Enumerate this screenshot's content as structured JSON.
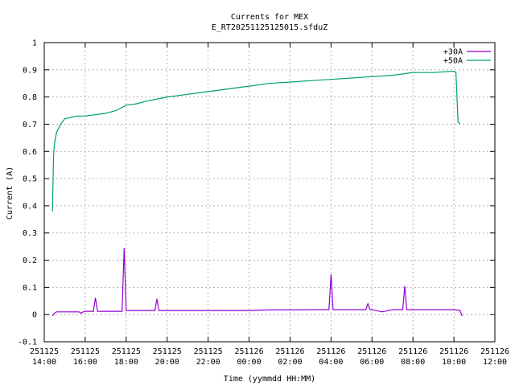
{
  "chart_data": {
    "type": "line",
    "title": "Currents for MEX",
    "subtitle": "E_RT20251125125015.sfduZ",
    "xlabel": "Time (yymmdd HH:MM)",
    "ylabel": "Current (A)",
    "xlim_hours": [
      14,
      36
    ],
    "ylim": [
      -0.1,
      1.0
    ],
    "x_ticks": [
      {
        "date": "251125",
        "time": "14:00"
      },
      {
        "date": "251125",
        "time": "16:00"
      },
      {
        "date": "251125",
        "time": "18:00"
      },
      {
        "date": "251125",
        "time": "20:00"
      },
      {
        "date": "251125",
        "time": "22:00"
      },
      {
        "date": "251126",
        "time": "00:00"
      },
      {
        "date": "251126",
        "time": "02:00"
      },
      {
        "date": "251126",
        "time": "04:00"
      },
      {
        "date": "251126",
        "time": "06:00"
      },
      {
        "date": "251126",
        "time": "08:00"
      },
      {
        "date": "251126",
        "time": "10:00"
      },
      {
        "date": "251126",
        "time": "12:00"
      }
    ],
    "y_ticks": [
      "-0.1",
      "0",
      "0.1",
      "0.2",
      "0.3",
      "0.4",
      "0.5",
      "0.6",
      "0.7",
      "0.8",
      "0.9",
      "1"
    ],
    "grid": true,
    "legend_position": "top-right",
    "series": [
      {
        "name": "+30A",
        "color": "#9400d3",
        "x_hours": [
          14.4,
          14.5,
          14.6,
          15.0,
          15.3,
          15.7,
          15.8,
          15.9,
          16.0,
          16.4,
          16.5,
          16.6,
          17.0,
          17.5,
          17.8,
          17.9,
          18.0,
          18.5,
          19.0,
          19.4,
          19.5,
          19.6,
          20.0,
          21.0,
          22.0,
          23.0,
          24.0,
          25.0,
          26.0,
          27.0,
          27.9,
          28.0,
          28.1,
          28.5,
          29.0,
          29.7,
          29.8,
          29.9,
          30.0,
          30.5,
          31.0,
          31.5,
          31.6,
          31.7,
          32.0,
          33.0,
          34.0,
          34.3,
          34.4
        ],
        "values": [
          -0.005,
          0.005,
          0.01,
          0.01,
          0.01,
          0.01,
          0.005,
          0.01,
          0.012,
          0.012,
          0.062,
          0.012,
          0.012,
          0.012,
          0.012,
          0.245,
          0.015,
          0.015,
          0.015,
          0.015,
          0.058,
          0.015,
          0.015,
          0.015,
          0.015,
          0.015,
          0.015,
          0.017,
          0.017,
          0.018,
          0.018,
          0.148,
          0.018,
          0.018,
          0.018,
          0.018,
          0.04,
          0.018,
          0.018,
          0.01,
          0.018,
          0.018,
          0.105,
          0.018,
          0.018,
          0.018,
          0.018,
          0.015,
          -0.005
        ]
      },
      {
        "name": "+50A",
        "color": "#009e73",
        "x_hours": [
          14.4,
          14.45,
          14.5,
          14.6,
          14.8,
          15.0,
          15.3,
          15.6,
          16.0,
          16.5,
          17.0,
          17.5,
          18.0,
          18.5,
          19.0,
          20.0,
          21.0,
          22.0,
          23.0,
          24.0,
          25.0,
          26.0,
          27.0,
          28.0,
          29.0,
          30.0,
          31.0,
          32.0,
          33.0,
          34.0,
          34.1,
          34.2,
          34.3
        ],
        "values": [
          0.38,
          0.58,
          0.63,
          0.67,
          0.7,
          0.72,
          0.725,
          0.73,
          0.73,
          0.735,
          0.74,
          0.75,
          0.77,
          0.775,
          0.785,
          0.8,
          0.81,
          0.82,
          0.83,
          0.84,
          0.85,
          0.855,
          0.86,
          0.865,
          0.87,
          0.875,
          0.88,
          0.89,
          0.89,
          0.895,
          0.89,
          0.71,
          0.7
        ]
      }
    ]
  }
}
